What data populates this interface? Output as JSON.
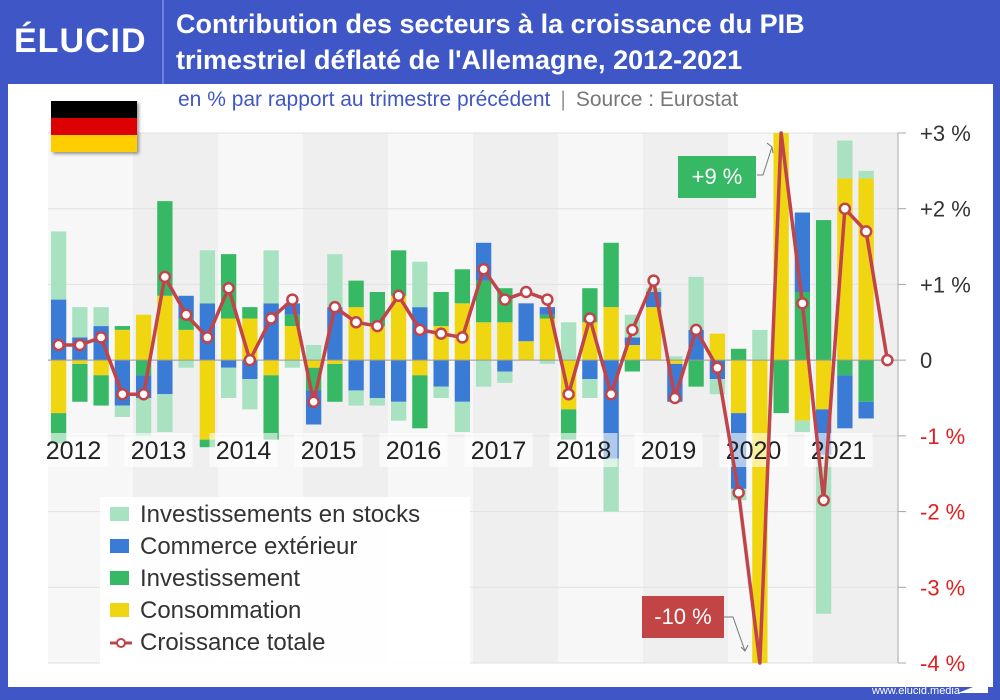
{
  "header": {
    "logo": "ÉLUCID",
    "title_line1": "Contribution des secteurs à la croissance du PIB",
    "title_line2": "trimestriel déflaté de l'Allemagne, 2012-2021"
  },
  "subtitle": {
    "unit": "en % par rapport au trimestre précédent",
    "separator": "|",
    "source": "Source : Eurostat"
  },
  "flag": {
    "country": "Allemagne",
    "colors": [
      "#000000",
      "#dd0000",
      "#ffce00"
    ]
  },
  "footer": {
    "url": "www.elucid.media"
  },
  "annotations": {
    "high": {
      "label": "+9 %",
      "color": "#36b865"
    },
    "low": {
      "label": "-10 %",
      "color": "#c24444"
    }
  },
  "colors": {
    "stocks": "#a8e2c0",
    "trade": "#3a7bd5",
    "investment": "#36b865",
    "consumption": "#f0d611",
    "total": "#c0444a",
    "negative_tick": "#e02020",
    "positive_tick": "#333333"
  },
  "chart_data": {
    "type": "bar",
    "stacked": true,
    "title": "Contribution des secteurs à la croissance du PIB trimestriel déflaté de l'Allemagne, 2012-2021",
    "subtitle": "en % par rapport au trimestre précédent",
    "xlabel": "",
    "ylabel": "%",
    "ylim": [
      -4,
      3
    ],
    "yticks": [
      {
        "value": 3,
        "label": "+3 %"
      },
      {
        "value": 2,
        "label": "+2 %"
      },
      {
        "value": 1,
        "label": "+1 %"
      },
      {
        "value": 0,
        "label": "0"
      },
      {
        "value": -1,
        "label": "-1 %"
      },
      {
        "value": -2,
        "label": "-2 %"
      },
      {
        "value": -3,
        "label": "-3 %"
      },
      {
        "value": -4,
        "label": "-4 %"
      }
    ],
    "year_labels": [
      "2012",
      "2013",
      "2014",
      "2015",
      "2016",
      "2017",
      "2018",
      "2019",
      "2020",
      "2021"
    ],
    "grid": true,
    "legend_position": "bottom-left",
    "categories": [
      "2012Q1",
      "2012Q2",
      "2012Q3",
      "2012Q4",
      "2013Q1",
      "2013Q2",
      "2013Q3",
      "2013Q4",
      "2014Q1",
      "2014Q2",
      "2014Q3",
      "2014Q4",
      "2015Q1",
      "2015Q2",
      "2015Q3",
      "2015Q4",
      "2016Q1",
      "2016Q2",
      "2016Q3",
      "2016Q4",
      "2017Q1",
      "2017Q2",
      "2017Q3",
      "2017Q4",
      "2018Q1",
      "2018Q2",
      "2018Q3",
      "2018Q4",
      "2019Q1",
      "2019Q2",
      "2019Q3",
      "2019Q4",
      "2020Q1",
      "2020Q2",
      "2020Q3",
      "2020Q4",
      "2021Q1",
      "2021Q2",
      "2021Q3",
      "2021Q4"
    ],
    "series": [
      {
        "name": "Consommation",
        "key": "consumption",
        "values": [
          -0.7,
          -0.05,
          -0.2,
          0.4,
          0.6,
          0.85,
          0.4,
          -1.05,
          0.55,
          0.55,
          -0.2,
          0.45,
          -0.1,
          -0.05,
          0.7,
          0.45,
          0.85,
          -0.2,
          0.45,
          0.75,
          0.5,
          0.5,
          0.25,
          0.55,
          -0.65,
          0.5,
          0.7,
          0.2,
          0.7,
          -0.05,
          0.0,
          0.35,
          -0.7,
          -10.5,
          9.0,
          -0.8,
          -0.65,
          2.4,
          2.4,
          0.0
        ]
      },
      {
        "name": "Investissement",
        "key": "investment",
        "values": [
          -0.4,
          -0.5,
          -0.4,
          0.05,
          -0.2,
          1.25,
          0.15,
          -0.1,
          0.85,
          0.15,
          -0.85,
          0.15,
          -0.3,
          -0.5,
          0.35,
          0.45,
          0.6,
          -0.7,
          0.45,
          0.45,
          0.55,
          0.45,
          0.0,
          0.05,
          -0.4,
          0.45,
          0.85,
          -0.15,
          0.0,
          0.0,
          -0.35,
          0.0,
          0.15,
          0.0,
          -0.7,
          0.9,
          1.85,
          -0.2,
          -0.55,
          0.0
        ]
      },
      {
        "name": "Commerce extérieur",
        "key": "trade",
        "values": [
          0.8,
          0.3,
          0.45,
          -0.6,
          -0.3,
          -0.45,
          0.3,
          0.75,
          -0.1,
          -0.25,
          0.75,
          0.15,
          -0.45,
          0.7,
          -0.4,
          -0.5,
          -0.55,
          0.7,
          -0.35,
          -0.55,
          0.5,
          -0.15,
          0.5,
          0.1,
          0.0,
          -0.25,
          -1.3,
          0.1,
          0.2,
          -0.5,
          0.4,
          -0.25,
          -1.0,
          0.0,
          0.0,
          1.05,
          -0.6,
          -0.7,
          -0.22,
          0.0
        ]
      },
      {
        "name": "Investissements en stocks",
        "key": "stocks",
        "values": [
          0.9,
          0.4,
          0.25,
          -0.15,
          -0.5,
          -0.5,
          -0.1,
          0.7,
          -0.4,
          -0.4,
          0.7,
          -0.1,
          0.2,
          0.7,
          -0.2,
          -0.1,
          -0.25,
          0.6,
          -0.15,
          -0.4,
          -0.35,
          -0.15,
          0.0,
          -0.05,
          0.5,
          -0.25,
          -0.7,
          0.3,
          0.05,
          0.05,
          0.7,
          -0.2,
          -0.15,
          0.4,
          0.0,
          -0.15,
          -2.1,
          0.5,
          0.1,
          0.0
        ]
      },
      {
        "name": "Croissance totale",
        "key": "total",
        "type": "line",
        "values": [
          0.2,
          0.2,
          0.3,
          -0.45,
          -0.45,
          1.1,
          0.6,
          0.3,
          0.95,
          0.0,
          0.55,
          0.8,
          -0.55,
          0.7,
          0.5,
          0.45,
          0.85,
          0.4,
          0.35,
          0.3,
          1.2,
          0.8,
          0.9,
          0.8,
          -0.45,
          0.55,
          -0.45,
          0.4,
          1.05,
          -0.5,
          0.4,
          -0.1,
          -1.75,
          -10.0,
          9.0,
          0.75,
          -1.85,
          2.0,
          1.7,
          0.0
        ]
      }
    ],
    "annotations": [
      {
        "text": "+9 %",
        "target": "2020Q3",
        "value": 9
      },
      {
        "text": "-10 %",
        "target": "2020Q2",
        "value": -10
      }
    ]
  },
  "legend": [
    {
      "label": "Investissements en stocks",
      "key": "stocks"
    },
    {
      "label": "Commerce extérieur",
      "key": "trade"
    },
    {
      "label": "Investissement",
      "key": "investment"
    },
    {
      "label": "Consommation",
      "key": "consumption"
    },
    {
      "label": "Croissance totale",
      "key": "total"
    }
  ]
}
